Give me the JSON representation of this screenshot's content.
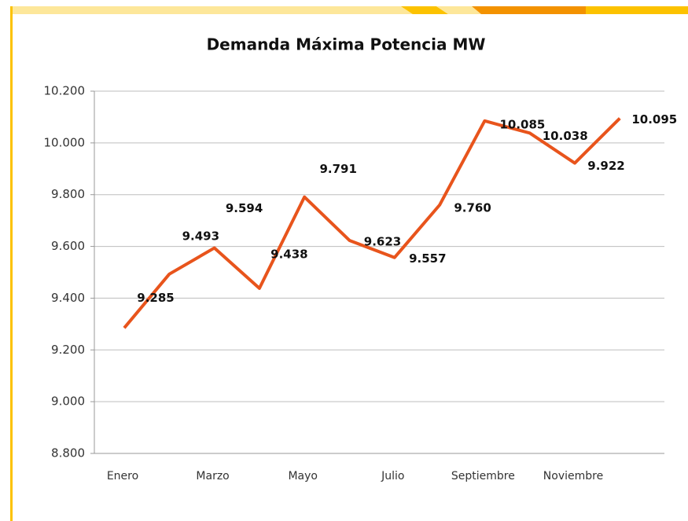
{
  "chart_data": {
    "type": "line",
    "title": "Demanda Máxima Potencia MW",
    "categories": [
      "Enero",
      null,
      "Marzo",
      null,
      "Mayo",
      null,
      "Julio",
      null,
      "Septiembre",
      null,
      "Noviembre",
      null
    ],
    "series": [
      {
        "name": "Demanda Máxima Potencia MW",
        "color": "#e8541c",
        "values": [
          9285,
          9493,
          9594,
          9438,
          9791,
          9623,
          9557,
          9760,
          10085,
          10038,
          9922,
          10095
        ],
        "value_labels": [
          "9.285",
          "9.493",
          "9.594",
          "9.438",
          "9.791",
          "9.623",
          "9.557",
          "9.760",
          "10.085",
          "10.038",
          "9.922",
          "10.095"
        ]
      }
    ],
    "ylim": [
      8800,
      10200
    ],
    "yticks": [
      {
        "value": 8800,
        "label": "8.800"
      },
      {
        "value": 9000,
        "label": "9.000"
      },
      {
        "value": 9200,
        "label": "9.200"
      },
      {
        "value": 9400,
        "label": "9.400"
      },
      {
        "value": 9600,
        "label": "9.600"
      },
      {
        "value": 9800,
        "label": "9.800"
      },
      {
        "value": 10000,
        "label": "10.000"
      },
      {
        "value": 10200,
        "label": "10.200"
      }
    ],
    "grid": true
  }
}
